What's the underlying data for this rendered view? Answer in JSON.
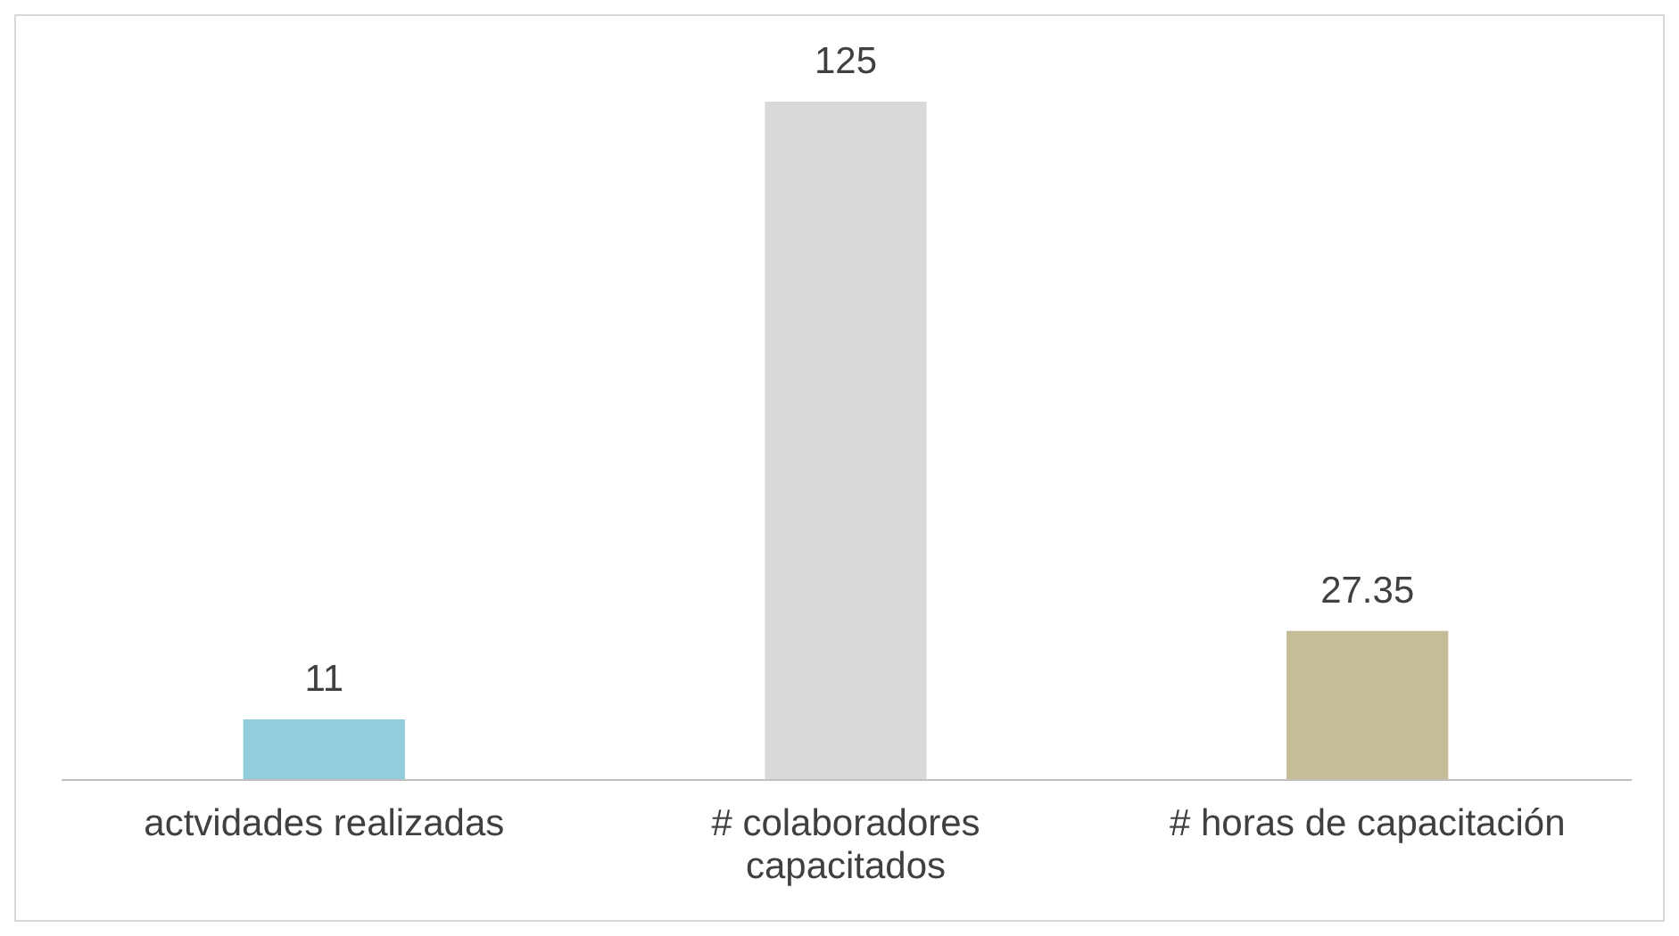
{
  "chart_data": {
    "type": "bar",
    "categories": [
      "actvidades realizadas",
      "# colaboradores capacitados",
      "# horas de capacitación"
    ],
    "values": [
      11,
      125,
      27.35
    ],
    "colors": [
      "#92cddc",
      "#d9d9d9",
      "#c4bd97"
    ],
    "data_labels": true,
    "grid": false
  }
}
